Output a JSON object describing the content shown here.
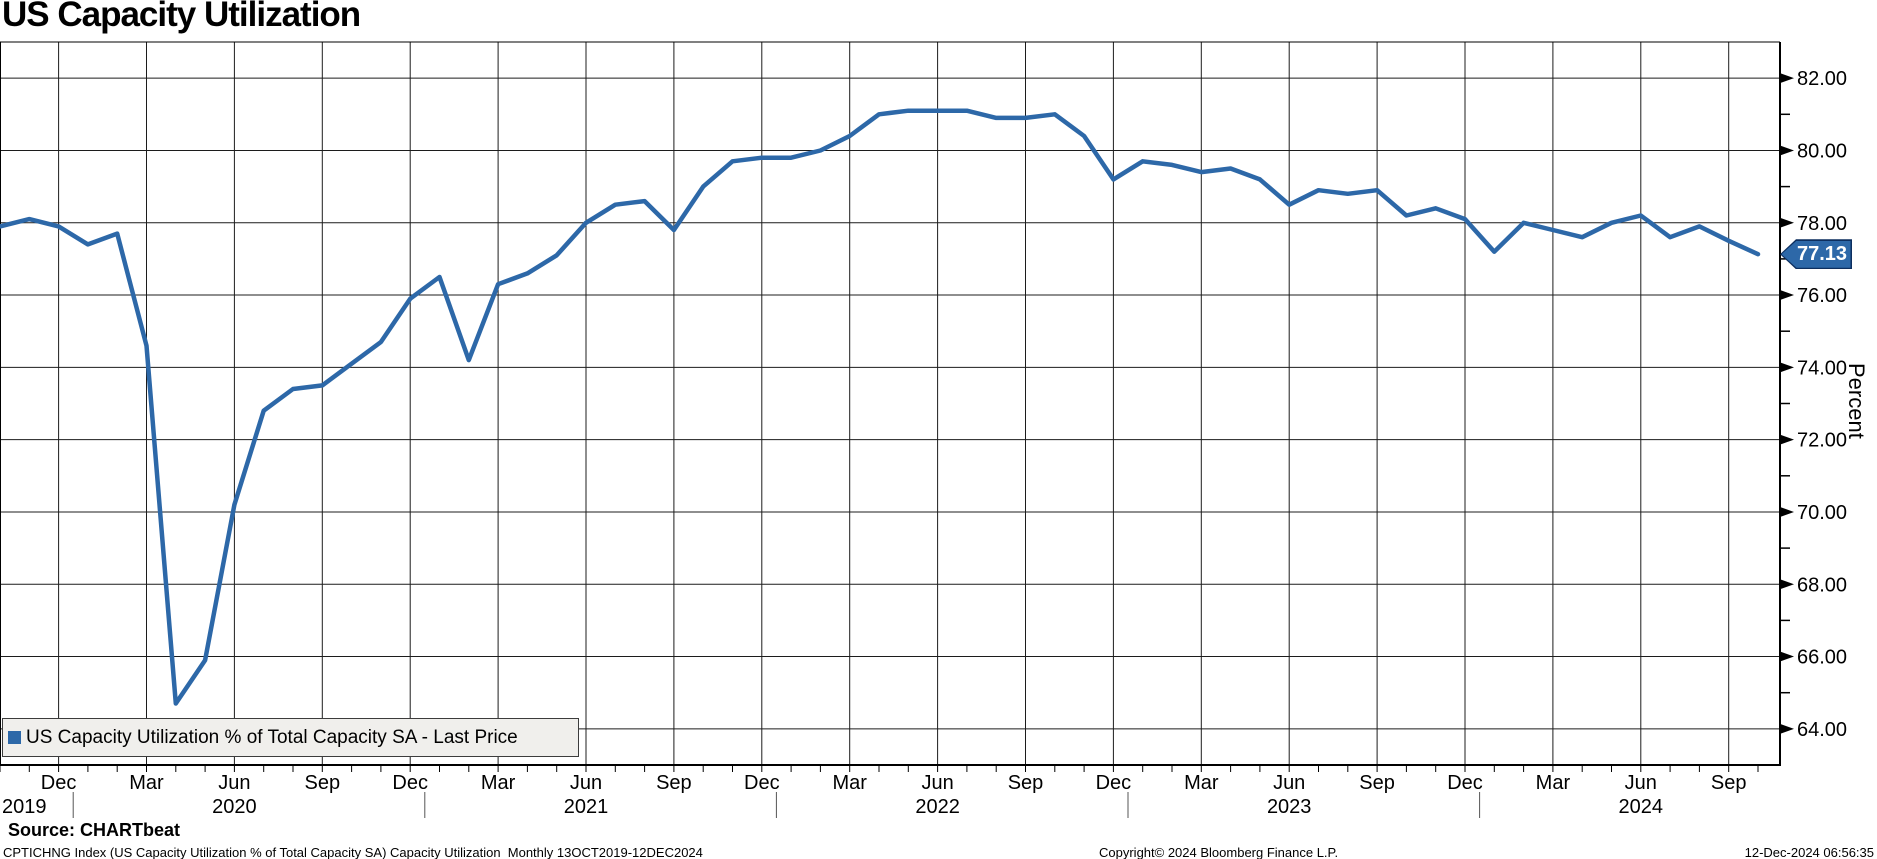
{
  "title": "US Capacity Utilization",
  "legend": {
    "series_label": "US Capacity Utilization % of Total Capacity SA - Last Price"
  },
  "source": "Source: CHARTbeat",
  "footer": {
    "left": "CPTICHNG Index (US Capacity Utilization % of Total Capacity SA) Capacity Utilization  Monthly 13OCT2019-12DEC2024",
    "center": "Copyright© 2024 Bloomberg Finance L.P.",
    "right": "12-Dec-2024 06:56:35"
  },
  "chart_data": {
    "type": "line",
    "title": "US Capacity Utilization",
    "series_name": "US Capacity Utilization % of Total Capacity SA - Last Price",
    "xlabel": "",
    "ylabel": "Percent",
    "frequency": "monthly",
    "x_start": "2019-10",
    "x_end": "2024-10",
    "ylim": [
      63,
      83
    ],
    "grid": true,
    "line_color": "#2d68a8",
    "last_price": 77.13,
    "last_price_label": "77.13",
    "y_tick_values": [
      82,
      80,
      78,
      76,
      74,
      72,
      70,
      68,
      66,
      64
    ],
    "y_tick_labels": [
      "82.00",
      "80.00",
      "78.00",
      "76.00",
      "74.00",
      "72.00",
      "70.00",
      "68.00",
      "66.00",
      "64.00"
    ],
    "x_tick_labels": [
      "Dec",
      "Mar",
      "Jun",
      "Sep",
      "Dec",
      "Mar",
      "Jun",
      "Sep",
      "Dec",
      "Mar",
      "Jun",
      "Sep",
      "Dec",
      "Mar",
      "Jun",
      "Sep",
      "Dec",
      "Mar",
      "Jun",
      "Sep"
    ],
    "year_labels": [
      {
        "label": "2019",
        "month_index": 0,
        "anchor": "start"
      },
      {
        "label": "2020",
        "month_index": 8,
        "anchor": "middle"
      },
      {
        "label": "2021",
        "month_index": 20,
        "anchor": "middle"
      },
      {
        "label": "2022",
        "month_index": 32,
        "anchor": "middle"
      },
      {
        "label": "2023",
        "month_index": 44,
        "anchor": "middle"
      },
      {
        "label": "2024",
        "month_index": 56,
        "anchor": "middle"
      }
    ],
    "year_separator_month_indices": [
      2,
      14,
      26,
      38,
      50
    ],
    "x_months": [
      "2019-10",
      "2019-11",
      "2019-12",
      "2020-01",
      "2020-02",
      "2020-03",
      "2020-04",
      "2020-05",
      "2020-06",
      "2020-07",
      "2020-08",
      "2020-09",
      "2020-10",
      "2020-11",
      "2020-12",
      "2021-01",
      "2021-02",
      "2021-03",
      "2021-04",
      "2021-05",
      "2021-06",
      "2021-07",
      "2021-08",
      "2021-09",
      "2021-10",
      "2021-11",
      "2021-12",
      "2022-01",
      "2022-02",
      "2022-03",
      "2022-04",
      "2022-05",
      "2022-06",
      "2022-07",
      "2022-08",
      "2022-09",
      "2022-10",
      "2022-11",
      "2022-12",
      "2023-01",
      "2023-02",
      "2023-03",
      "2023-04",
      "2023-05",
      "2023-06",
      "2023-07",
      "2023-08",
      "2023-09",
      "2023-10",
      "2023-11",
      "2023-12",
      "2024-01",
      "2024-02",
      "2024-03",
      "2024-04",
      "2024-05",
      "2024-06",
      "2024-07",
      "2024-08",
      "2024-09",
      "2024-10"
    ],
    "values": [
      77.9,
      78.1,
      77.9,
      77.4,
      77.7,
      74.6,
      64.7,
      65.9,
      70.2,
      72.8,
      73.4,
      73.5,
      74.1,
      74.7,
      75.9,
      76.5,
      74.2,
      76.3,
      76.6,
      77.1,
      78.0,
      78.5,
      78.6,
      77.8,
      79.0,
      79.7,
      79.8,
      79.8,
      80.0,
      80.4,
      81.0,
      81.1,
      81.1,
      81.1,
      80.9,
      80.9,
      81.0,
      80.4,
      79.2,
      79.7,
      79.6,
      79.4,
      79.5,
      79.2,
      78.5,
      78.9,
      78.8,
      78.9,
      78.2,
      78.4,
      78.1,
      77.2,
      78.0,
      77.8,
      77.6,
      78.0,
      78.2,
      77.6,
      77.9,
      77.5,
      77.13
    ]
  }
}
